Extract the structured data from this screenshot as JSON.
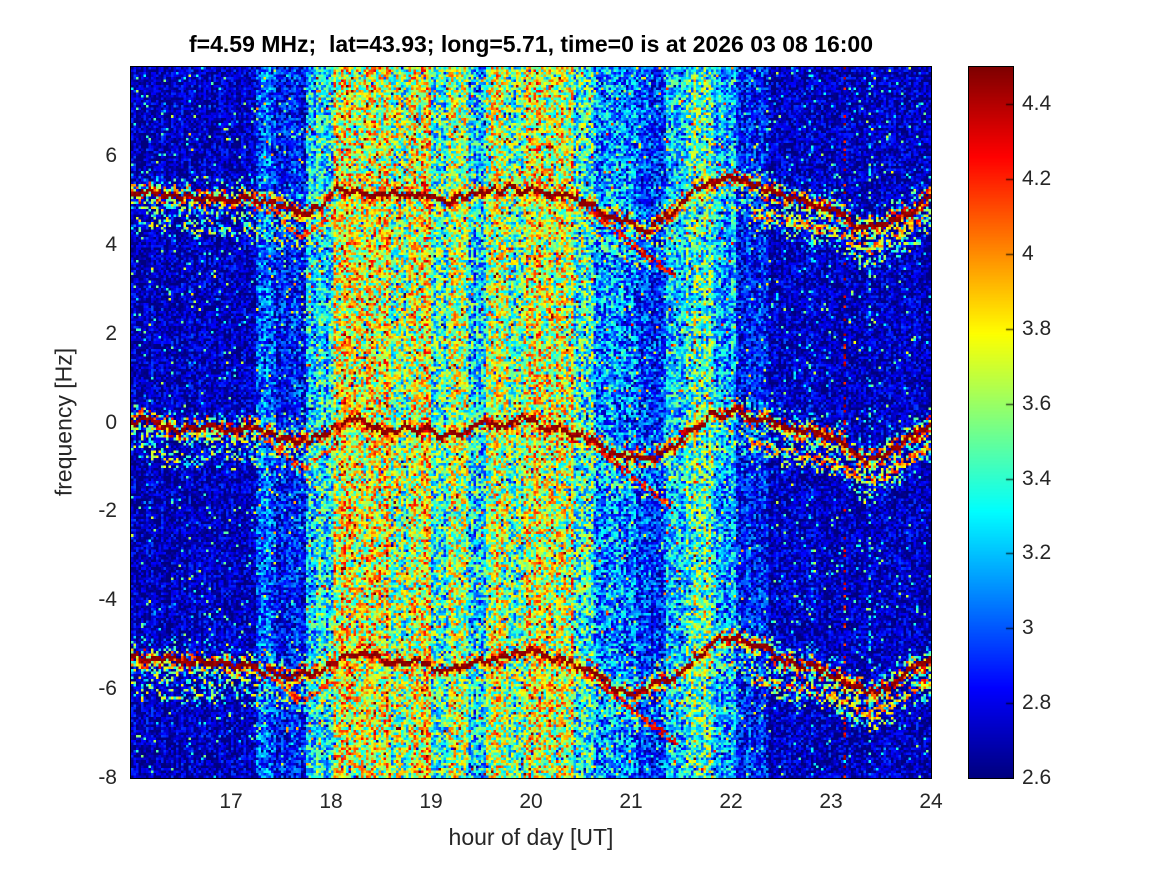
{
  "colors": {
    "tick_text": "#262626",
    "title_text": "#000000",
    "axes_frame": "#000000",
    "background": "#ffffff"
  },
  "chart_data": {
    "type": "heatmap",
    "title": "f=4.59 MHz;  lat=43.93; long=5.71, time=0 is at 2026 03 08 16:00",
    "xlabel": "hour of day [UT]",
    "ylabel": "frequency [Hz]",
    "x_range": [
      16,
      24
    ],
    "y_range": [
      -8,
      8
    ],
    "x_ticks": [
      17,
      18,
      19,
      20,
      21,
      22,
      23,
      24
    ],
    "y_ticks": [
      6,
      4,
      2,
      0,
      -2,
      -4,
      -6,
      -8
    ],
    "grid": false,
    "colormap": "jet",
    "color_range": [
      2.6,
      4.5
    ],
    "colorbar_ticks": {
      "values": [
        2.6,
        2.8,
        3.0,
        3.2,
        3.4,
        3.6,
        3.8,
        4.0,
        4.2,
        4.4
      ],
      "labels": [
        "2.6",
        "2.8",
        "3",
        "3.2",
        "3.4",
        "3.6",
        "3.8",
        "4",
        "4.2",
        "4.4"
      ]
    },
    "random_seed": 42,
    "spectral_traces": {
      "offsets_hz": [
        5.22,
        0.0,
        -5.25
      ],
      "core_half_width_hz": 0.06,
      "waveform_hz": [
        [
          16.0,
          -0.05
        ],
        [
          16.6,
          -0.12
        ],
        [
          17.1,
          -0.2
        ],
        [
          17.45,
          -0.35
        ],
        [
          17.75,
          -0.48
        ],
        [
          18.05,
          -0.1
        ],
        [
          18.3,
          0.05
        ],
        [
          18.55,
          -0.2
        ],
        [
          18.85,
          -0.05
        ],
        [
          19.1,
          -0.3
        ],
        [
          19.4,
          -0.18
        ],
        [
          19.7,
          0.0
        ],
        [
          19.95,
          0.08
        ],
        [
          20.25,
          -0.12
        ],
        [
          20.55,
          -0.35
        ],
        [
          20.85,
          -0.78
        ],
        [
          21.15,
          -0.8
        ],
        [
          21.45,
          -0.42
        ],
        [
          21.7,
          0.1
        ],
        [
          21.85,
          0.3
        ],
        [
          22.1,
          0.28
        ],
        [
          22.4,
          0.0
        ],
        [
          22.7,
          -0.18
        ],
        [
          23.0,
          -0.4
        ],
        [
          23.35,
          -0.85
        ],
        [
          23.55,
          -0.72
        ],
        [
          23.8,
          -0.38
        ],
        [
          24.0,
          -0.12
        ]
      ]
    },
    "echo_traces": [
      {
        "points": [
          [
            17.35,
            -0.35
          ],
          [
            17.7,
            -1.05
          ],
          [
            18.05,
            -0.5
          ]
        ],
        "half_width": 0.09,
        "prob": 0.55,
        "level": 3.95,
        "amp": 0.4
      },
      {
        "points": [
          [
            20.55,
            -0.35
          ],
          [
            21.0,
            -1.2
          ],
          [
            21.45,
            -1.95
          ]
        ],
        "half_width": 0.09,
        "prob": 0.65,
        "level": 4.1,
        "amp": 0.35
      },
      {
        "points": [
          [
            22.2,
            -0.5
          ],
          [
            23.0,
            -0.9
          ],
          [
            23.4,
            -1.35
          ],
          [
            24.0,
            -0.55
          ]
        ],
        "half_width": 0.12,
        "prob": 0.5,
        "level": 3.55,
        "amp": 0.75
      }
    ],
    "noise_bands": [
      {
        "start": 16.0,
        "level": 2.72,
        "speckle": 0.22
      },
      {
        "start": 17.25,
        "level": 3.0,
        "speckle": 0.33
      },
      {
        "start": 17.45,
        "level": 2.85,
        "speckle": 0.28
      },
      {
        "start": 17.75,
        "level": 3.28,
        "speckle": 0.4
      },
      {
        "start": 18.02,
        "level": 3.72,
        "speckle": 0.5
      },
      {
        "start": 18.6,
        "level": 3.55,
        "speckle": 0.5
      },
      {
        "start": 18.78,
        "level": 3.7,
        "speckle": 0.5
      },
      {
        "start": 19.0,
        "level": 3.38,
        "speckle": 0.45
      },
      {
        "start": 19.17,
        "level": 3.6,
        "speckle": 0.48
      },
      {
        "start": 19.38,
        "level": 3.25,
        "speckle": 0.42
      },
      {
        "start": 19.56,
        "level": 3.68,
        "speckle": 0.48
      },
      {
        "start": 19.78,
        "level": 3.48,
        "speckle": 0.46
      },
      {
        "start": 19.92,
        "level": 3.7,
        "speckle": 0.5
      },
      {
        "start": 20.42,
        "level": 3.4,
        "speckle": 0.45
      },
      {
        "start": 20.62,
        "level": 3.1,
        "speckle": 0.38
      },
      {
        "start": 21.08,
        "level": 2.92,
        "speckle": 0.3
      },
      {
        "start": 21.36,
        "level": 3.18,
        "speckle": 0.36
      },
      {
        "start": 21.56,
        "level": 3.46,
        "speckle": 0.45
      },
      {
        "start": 21.82,
        "level": 3.15,
        "speckle": 0.36
      },
      {
        "start": 22.06,
        "level": 2.88,
        "speckle": 0.28
      },
      {
        "start": 22.38,
        "level": 2.72,
        "speckle": 0.22
      }
    ],
    "vertical_lines": [
      {
        "t": 23.13,
        "prob": 0.25,
        "lo": 4.1,
        "hi": 4.5
      },
      {
        "t": 23.38,
        "prob": 0.3,
        "lo": 3.0,
        "hi": 3.6
      },
      {
        "t": 22.8,
        "prob": 0.12,
        "lo": 3.0,
        "hi": 3.4
      }
    ]
  }
}
